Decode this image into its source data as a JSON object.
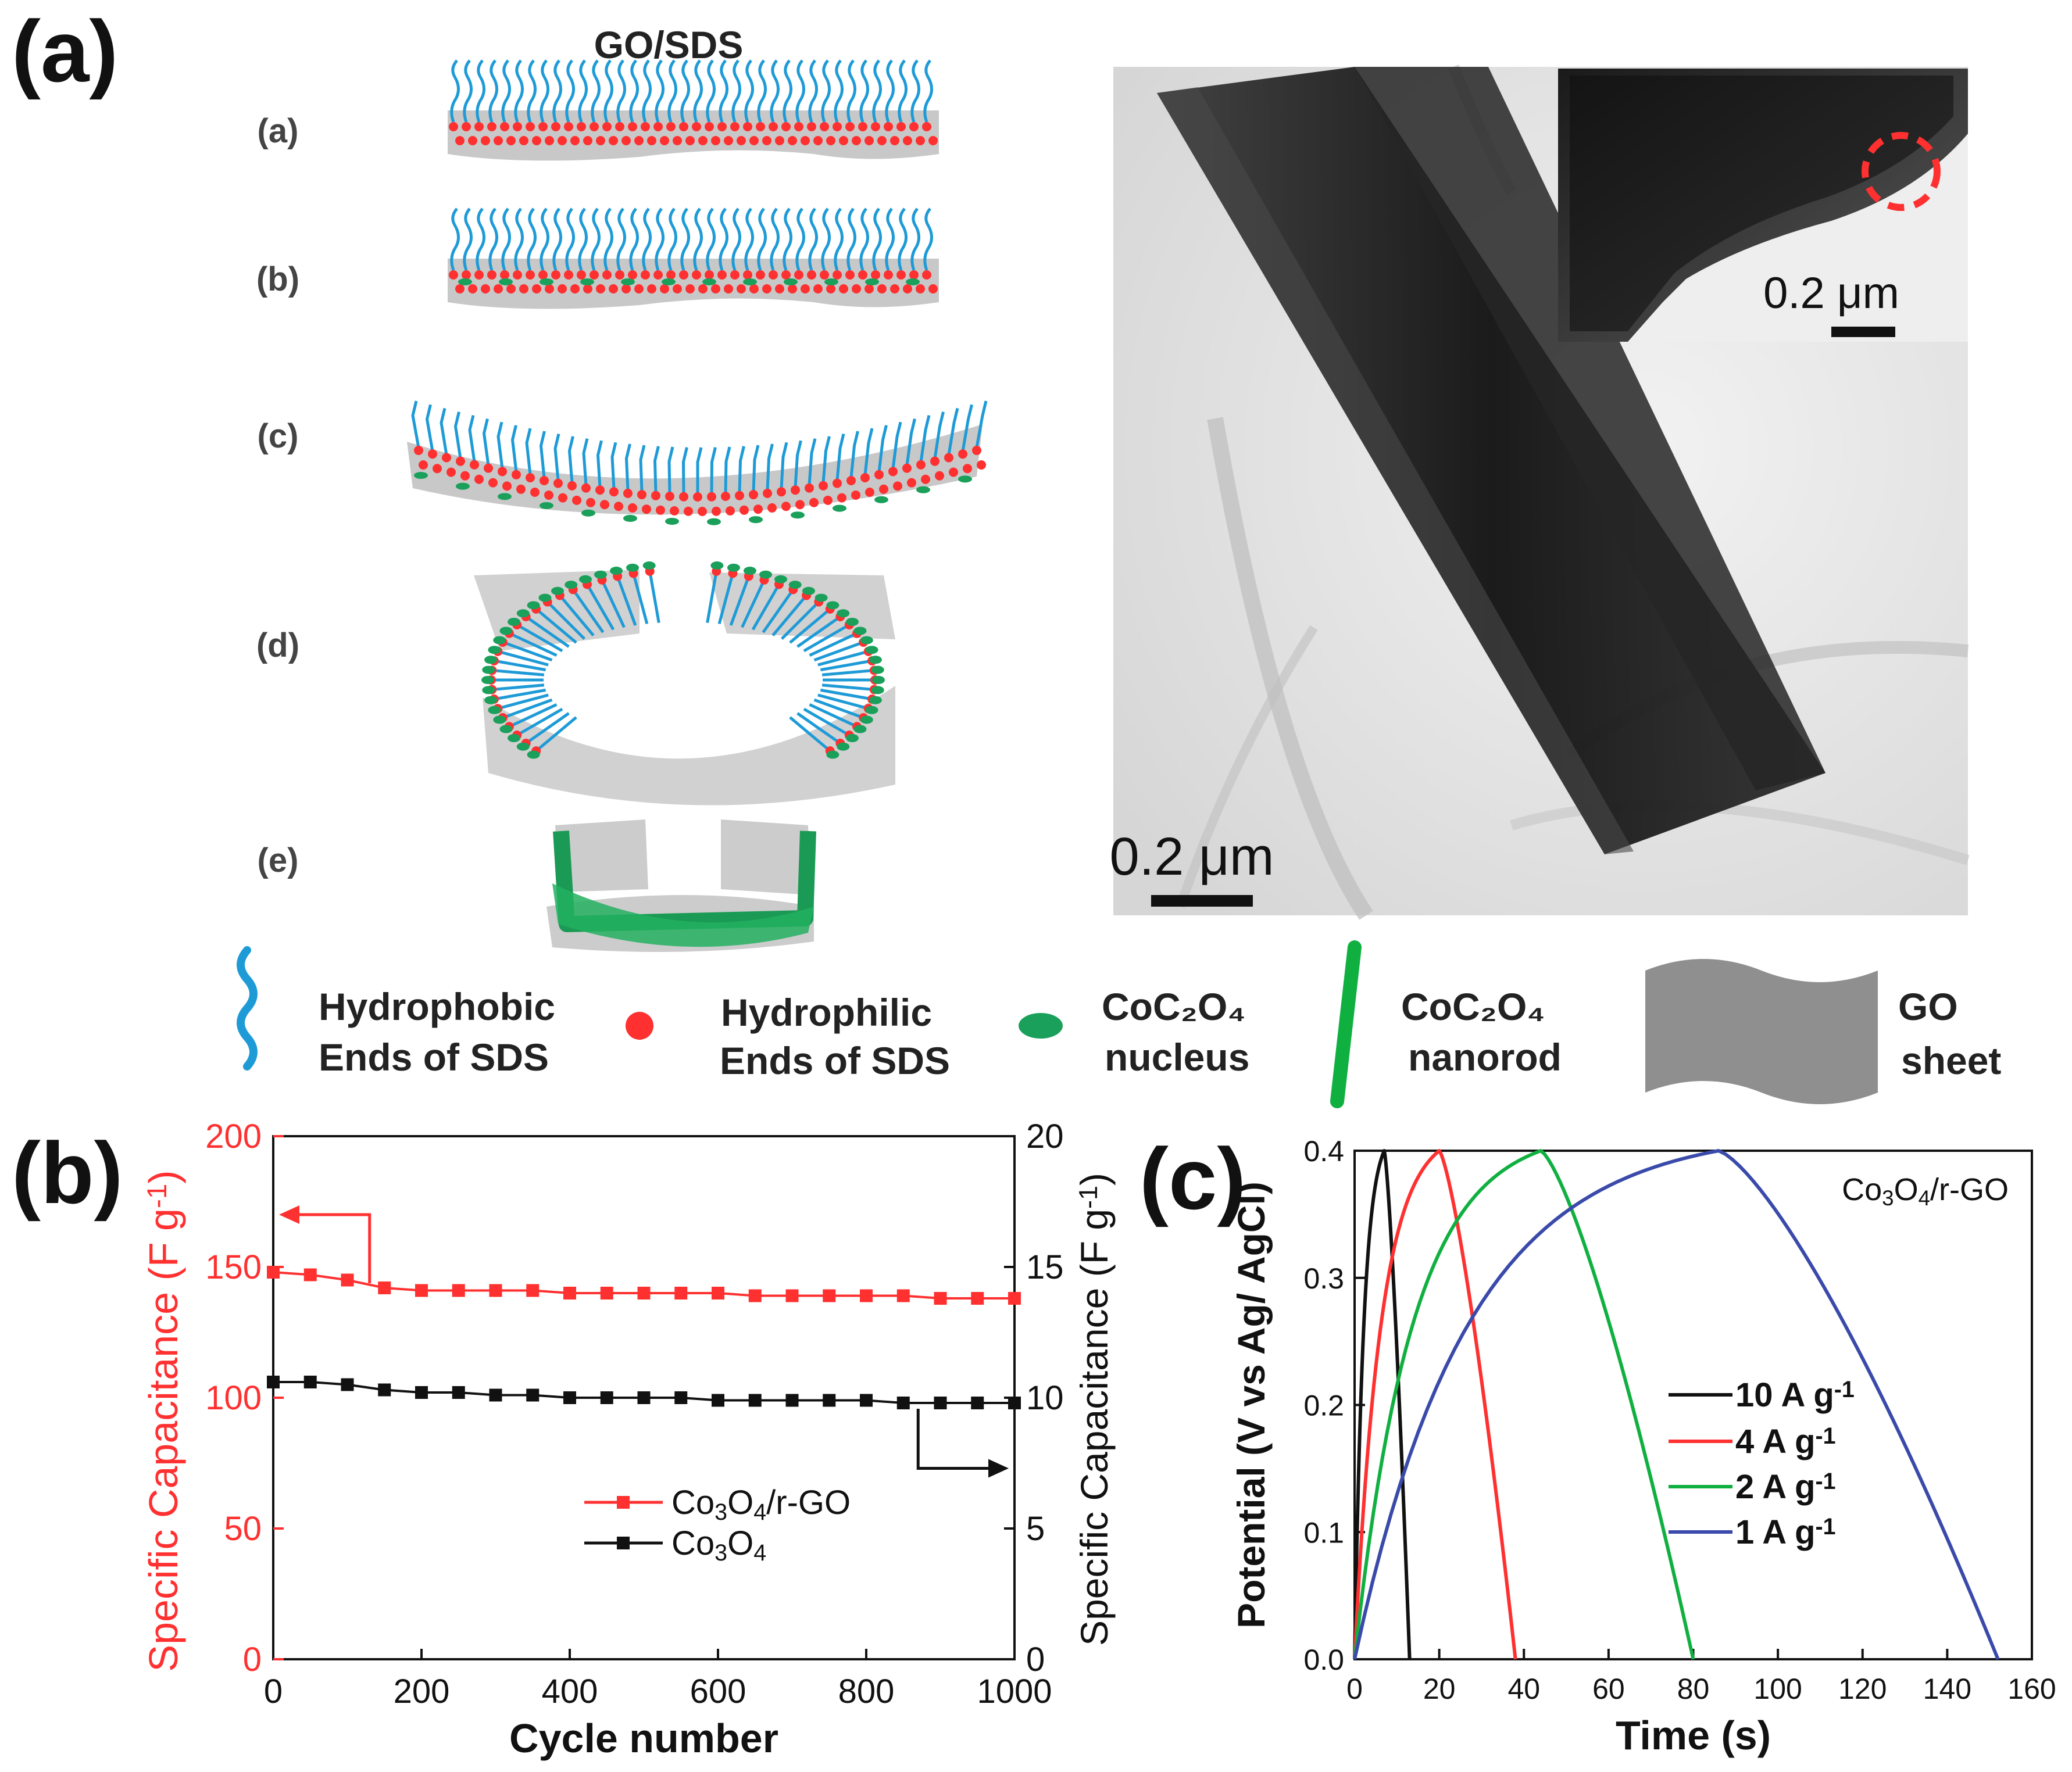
{
  "panel_a": {
    "letter": "(a)",
    "title": "GO/SDS",
    "steps": [
      {
        "label": "(a)",
        "shape": "flat"
      },
      {
        "label": "(b)",
        "shape": "flat-nuclei"
      },
      {
        "label": "(c)",
        "shape": "bent"
      },
      {
        "label": "(d)",
        "shape": "ring"
      },
      {
        "label": "(e)",
        "shape": "folded"
      }
    ],
    "tem": {
      "scale_label": "0.2 μm",
      "inset_scale_label": "0.2 μm"
    },
    "legend": {
      "hydrophobic": [
        "Hydrophobic",
        "Ends of SDS"
      ],
      "hydrophilic": [
        "Hydrophilic",
        "Ends of SDS"
      ],
      "nucleus": [
        "CoC₂O₄",
        "nucleus"
      ],
      "nanorod": [
        "CoC₂O₄",
        "nanorod"
      ],
      "go_sheet": [
        "GO",
        "sheet"
      ]
    }
  },
  "panel_b": {
    "letter": "(b)"
  },
  "panel_c": {
    "letter": "(c)"
  },
  "colors": {
    "red": "#ff3030",
    "black": "#111111",
    "green": "#10b040",
    "blue": "#3a4aaa",
    "sds_blue": "#1e9bd7",
    "go_gray": "#9a9a9a",
    "nucleus_green": "#1aa05a"
  },
  "chart_data": [
    {
      "type": "line",
      "xlabel": "Cycle number",
      "ylabel": "Specific Capacitance (F g⁻¹)",
      "y2label": "Specific Capacitance (F g⁻¹)",
      "xlim": [
        0,
        1000
      ],
      "ylim": [
        0,
        200
      ],
      "y2lim": [
        0,
        20
      ],
      "xticks": [
        0,
        200,
        400,
        600,
        800,
        1000
      ],
      "yticks": [
        0,
        50,
        100,
        150,
        200
      ],
      "y2ticks": [
        0,
        5,
        10,
        15,
        20
      ],
      "legend_position": "bottom-right",
      "series": [
        {
          "name": "Co₃O₄/r-GO",
          "axis": "left",
          "color": "#ff3030",
          "x": [
            0,
            50,
            100,
            150,
            200,
            250,
            300,
            350,
            400,
            450,
            500,
            550,
            600,
            650,
            700,
            750,
            800,
            850,
            900,
            950,
            1000
          ],
          "y": [
            148,
            147,
            145,
            142,
            141,
            141,
            141,
            141,
            140,
            140,
            140,
            140,
            140,
            139,
            139,
            139,
            139,
            139,
            138,
            138,
            138
          ]
        },
        {
          "name": "Co₃O₄",
          "axis": "left",
          "color": "#111111",
          "x": [
            0,
            50,
            100,
            150,
            200,
            250,
            300,
            350,
            400,
            450,
            500,
            550,
            600,
            650,
            700,
            750,
            800,
            850,
            900,
            950,
            1000
          ],
          "y": [
            106,
            106,
            105,
            103,
            102,
            102,
            101,
            101,
            100,
            100,
            100,
            100,
            99,
            99,
            99,
            99,
            99,
            98,
            98,
            98,
            98
          ]
        }
      ]
    },
    {
      "type": "line",
      "xlabel": "Time (s)",
      "ylabel": "Potential (V vs Ag/ AgCl)",
      "annotation": "Co₃O₄/r-GO",
      "xlim": [
        0,
        160
      ],
      "ylim": [
        0,
        0.4
      ],
      "xticks": [
        0,
        20,
        40,
        60,
        80,
        100,
        120,
        140,
        160
      ],
      "yticks": [
        0.0,
        0.1,
        0.2,
        0.3,
        0.4
      ],
      "legend_position": "center-right",
      "series": [
        {
          "name": "10 A g⁻¹",
          "color": "#111111",
          "charge_end": 7,
          "discharge_end": 13
        },
        {
          "name": "4 A g⁻¹",
          "color": "#ff3030",
          "charge_end": 20,
          "discharge_end": 38
        },
        {
          "name": "2 A g⁻¹",
          "color": "#10b040",
          "charge_end": 44,
          "discharge_end": 80
        },
        {
          "name": "1 A g⁻¹",
          "color": "#3a4aaa",
          "charge_end": 86,
          "discharge_end": 152
        }
      ]
    }
  ]
}
